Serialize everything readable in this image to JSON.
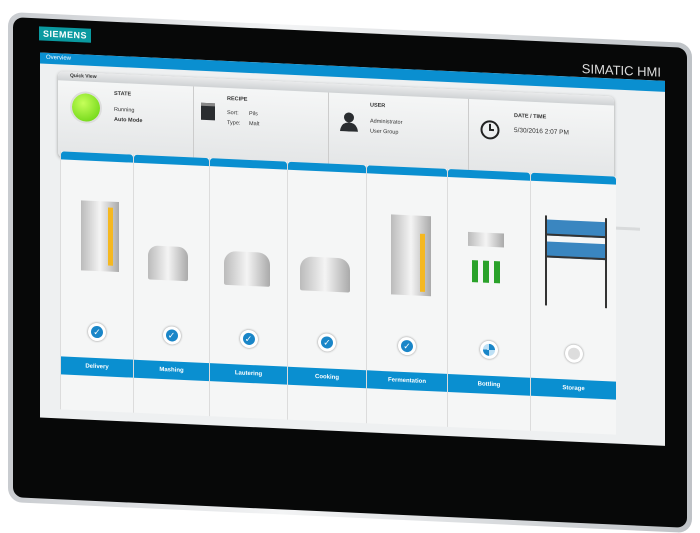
{
  "device": {
    "logo": "SIEMENS",
    "brand": "SIMATIC HMI"
  },
  "header": {
    "title": "Overview"
  },
  "quick_view": {
    "title": "Quick View",
    "state": {
      "heading": "STATE",
      "status": "Running",
      "mode": "Auto Mode",
      "indicator_color": "#6fd60f"
    },
    "recipe": {
      "heading": "RECIPE",
      "sort_label": "Sort:",
      "sort_value": "Pils",
      "type_label": "Type:",
      "type_value": "Malt"
    },
    "user": {
      "heading": "USER",
      "name": "Administrator",
      "group": "User Group"
    },
    "datetime": {
      "heading": "DATE / TIME",
      "value": "5/30/2016 2:07 PM"
    }
  },
  "stages": [
    {
      "label": "Delivery",
      "status": "done"
    },
    {
      "label": "Mashing",
      "status": "done"
    },
    {
      "label": "Lautering",
      "status": "done"
    },
    {
      "label": "Cooking",
      "status": "done"
    },
    {
      "label": "Fermentation",
      "status": "done"
    },
    {
      "label": "Bottling",
      "status": "in-progress"
    },
    {
      "label": "Storage",
      "status": "idle"
    }
  ],
  "colors": {
    "accent": "#0a8fd0",
    "check": "#1a86c8"
  }
}
